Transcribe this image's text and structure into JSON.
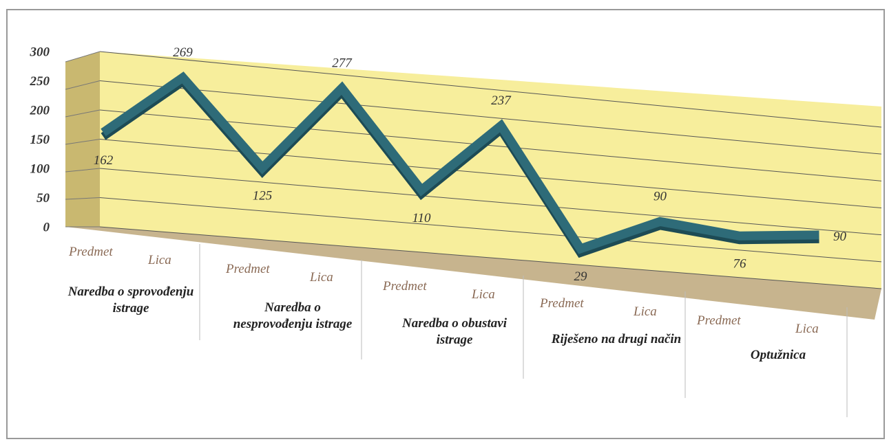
{
  "chart_data": {
    "type": "line",
    "categories": [
      "Predmet",
      "Lica",
      "Predmet",
      "Lica",
      "Predmet",
      "Lica",
      "Predmet",
      "Lica",
      "Predmet",
      "Lica"
    ],
    "groups": [
      "Naredba o sprovođenju istrage",
      "Naredba o nesprovođenju istrage",
      "Naredba o obustavi istrage",
      "Riješeno na drugi način",
      "Optužnica"
    ],
    "values": [
      162,
      269,
      125,
      277,
      110,
      237,
      29,
      90,
      76,
      90
    ],
    "color": "#2e6b78",
    "ylim": [
      0,
      300
    ],
    "yticks": [
      0,
      50,
      100,
      150,
      200,
      250,
      300
    ],
    "grid": true
  }
}
